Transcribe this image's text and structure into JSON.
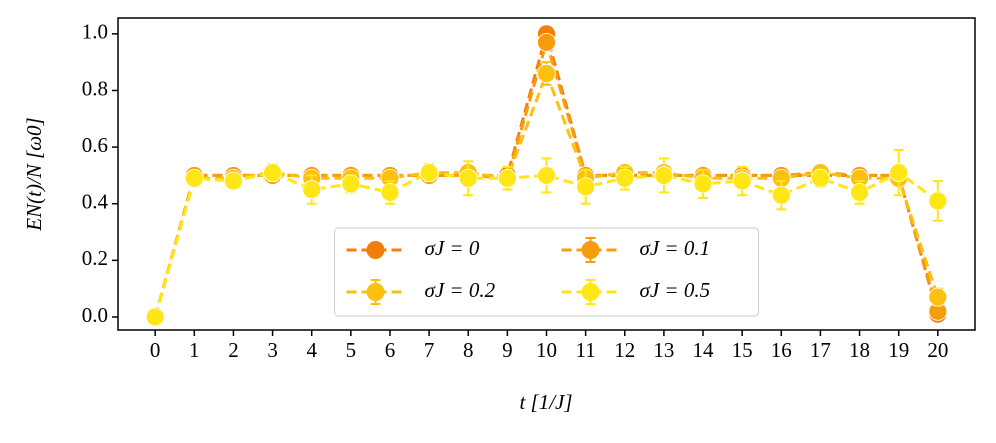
{
  "chart_data": {
    "type": "line",
    "xlabel": "t [1/J]",
    "ylabel": "EN(t)/N [ω0]",
    "x": [
      0,
      1,
      2,
      3,
      4,
      5,
      6,
      7,
      8,
      9,
      10,
      11,
      12,
      13,
      14,
      15,
      16,
      17,
      18,
      19,
      20
    ],
    "series": [
      {
        "name": "σJ = 0",
        "color": "#f27f0c",
        "values": [
          0,
          0.5,
          0.5,
          0.5,
          0.5,
          0.5,
          0.5,
          0.5,
          0.5,
          0.5,
          1.0,
          0.5,
          0.5,
          0.5,
          0.5,
          0.5,
          0.5,
          0.5,
          0.5,
          0.5,
          0.01
        ]
      },
      {
        "name": "σJ = 0.1",
        "color": "#f89c0e",
        "values": [
          0,
          0.5,
          0.5,
          0.5,
          0.5,
          0.5,
          0.5,
          0.5,
          0.5,
          0.49,
          0.97,
          0.5,
          0.5,
          0.5,
          0.5,
          0.5,
          0.5,
          0.51,
          0.5,
          0.5,
          0.02
        ],
        "errors": [
          0,
          0.01,
          0.01,
          0.01,
          0.01,
          0.01,
          0.01,
          0.01,
          0.01,
          0.01,
          0.02,
          0.01,
          0.01,
          0.01,
          0.01,
          0.01,
          0.01,
          0.01,
          0.01,
          0.01,
          0.01
        ]
      },
      {
        "name": "σJ = 0.2",
        "color": "#fcc00f",
        "values": [
          0,
          0.49,
          0.49,
          0.51,
          0.49,
          0.49,
          0.49,
          0.51,
          0.51,
          0.49,
          0.86,
          0.49,
          0.51,
          0.51,
          0.49,
          0.49,
          0.49,
          0.51,
          0.49,
          0.49,
          0.07
        ],
        "errors": [
          0,
          0.02,
          0.02,
          0.02,
          0.02,
          0.02,
          0.02,
          0.02,
          0.02,
          0.02,
          0.04,
          0.02,
          0.02,
          0.02,
          0.02,
          0.02,
          0.02,
          0.02,
          0.02,
          0.02,
          0.03
        ]
      },
      {
        "name": "σJ = 0.5",
        "color": "#ffe614",
        "values": [
          0,
          0.49,
          0.48,
          0.51,
          0.45,
          0.47,
          0.44,
          0.51,
          0.49,
          0.49,
          0.5,
          0.46,
          0.49,
          0.5,
          0.47,
          0.48,
          0.43,
          0.49,
          0.44,
          0.51,
          0.41
        ],
        "errors": [
          0,
          0.02,
          0.02,
          0.03,
          0.05,
          0.03,
          0.04,
          0.03,
          0.06,
          0.04,
          0.06,
          0.06,
          0.04,
          0.06,
          0.05,
          0.05,
          0.05,
          0.03,
          0.04,
          0.08,
          0.07
        ]
      }
    ],
    "xlim": [
      -0.95,
      20.95
    ],
    "ylim": [
      -0.046,
      1.056
    ],
    "xticks": [
      0,
      1,
      2,
      3,
      4,
      5,
      6,
      7,
      8,
      9,
      10,
      11,
      12,
      13,
      14,
      15,
      16,
      17,
      18,
      19,
      20
    ],
    "yticks": [
      {
        "value": 0,
        "label": "0.0"
      },
      0.2,
      0.4,
      0.6,
      0.8,
      {
        "value": 1,
        "label": "1.0"
      }
    ],
    "legend": "lower center",
    "grid": false
  }
}
